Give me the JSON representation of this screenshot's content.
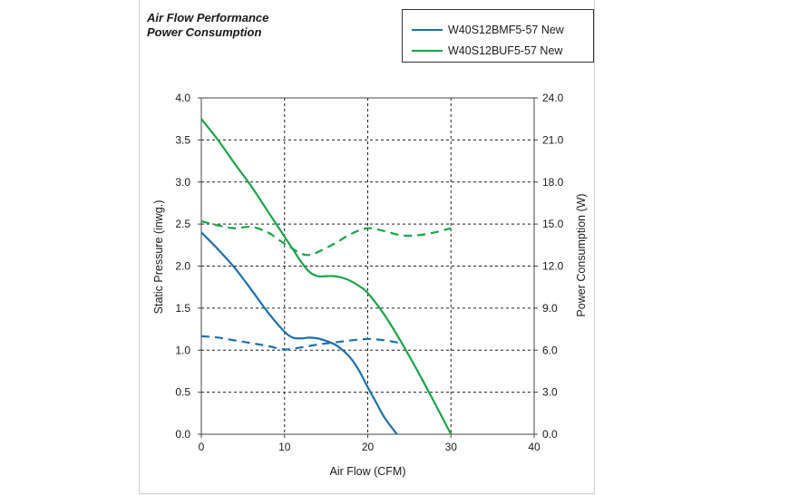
{
  "header": {
    "title_line1": "Air Flow Performance",
    "title_line2": "Power  Consumption"
  },
  "legend": {
    "items": [
      {
        "label": "W40S12BMF5-57  New",
        "color": "#1f6fa8"
      },
      {
        "label": "W40S12BUF5-57  New",
        "color": "#1aa34a"
      }
    ]
  },
  "chart_data": {
    "type": "line",
    "xlabel": "Air Flow (CFM)",
    "ylabel": "Static Pressure (inwg.)",
    "y2label": "Power Consumption (W)",
    "xlim": [
      0,
      40
    ],
    "ylim": [
      0,
      4.0
    ],
    "y2lim": [
      0,
      24.0
    ],
    "xticks": [
      "0",
      "10",
      "20",
      "30",
      "40"
    ],
    "yticks": [
      "0.0",
      "0.5",
      "1.0",
      "1.5",
      "2.0",
      "2.5",
      "3.0",
      "3.5",
      "4.0"
    ],
    "y2ticks": [
      "0.0",
      "3.0",
      "6.0",
      "9.0",
      "12.0",
      "15.0",
      "18.0",
      "21.0",
      "24.0"
    ],
    "grid": true,
    "legend_position": "top-right",
    "series": [
      {
        "name": "W40S12BMF5-57  New",
        "kind": "static-pressure",
        "axis": "left",
        "style": "solid",
        "color": "#1f6fa8",
        "x": [
          0,
          2,
          4,
          6,
          8,
          10,
          11,
          12,
          13,
          14,
          15,
          16,
          17,
          18,
          19,
          20,
          21,
          22,
          23.5
        ],
        "y": [
          2.4,
          2.2,
          1.98,
          1.72,
          1.45,
          1.22,
          1.15,
          1.14,
          1.15,
          1.14,
          1.11,
          1.07,
          1.0,
          0.9,
          0.75,
          0.56,
          0.38,
          0.2,
          0.0
        ]
      },
      {
        "name": "W40S12BMF5-57  New",
        "kind": "power",
        "axis": "right",
        "style": "dashed",
        "color": "#1f6fa8",
        "x": [
          0,
          2,
          4,
          6,
          8,
          10,
          12,
          14,
          16,
          18,
          20,
          22,
          24
        ],
        "y": [
          7.0,
          6.9,
          6.7,
          6.5,
          6.3,
          6.05,
          6.2,
          6.4,
          6.55,
          6.7,
          6.8,
          6.7,
          6.5
        ]
      },
      {
        "name": "W40S12BUF5-57  New",
        "kind": "static-pressure",
        "axis": "left",
        "style": "solid",
        "color": "#1aa34a",
        "x": [
          0,
          2,
          4,
          6,
          8,
          10,
          11,
          12,
          13,
          14,
          15,
          16,
          17,
          18,
          19,
          20,
          22,
          24,
          26,
          28,
          30
        ],
        "y": [
          3.75,
          3.5,
          3.22,
          2.95,
          2.65,
          2.35,
          2.2,
          2.05,
          1.93,
          1.88,
          1.88,
          1.88,
          1.86,
          1.82,
          1.76,
          1.68,
          1.42,
          1.1,
          0.75,
          0.38,
          0.0
        ]
      },
      {
        "name": "W40S12BUF5-57  New",
        "kind": "power",
        "axis": "right",
        "style": "dashed",
        "color": "#1aa34a",
        "x": [
          0,
          2,
          4,
          6,
          8,
          10,
          12,
          13,
          14,
          16,
          18,
          20,
          22,
          24,
          26,
          28,
          30
        ],
        "y": [
          15.2,
          14.9,
          14.7,
          14.8,
          14.4,
          13.6,
          12.9,
          12.8,
          13.0,
          13.6,
          14.3,
          14.7,
          14.5,
          14.2,
          14.2,
          14.4,
          14.7
        ]
      }
    ]
  }
}
